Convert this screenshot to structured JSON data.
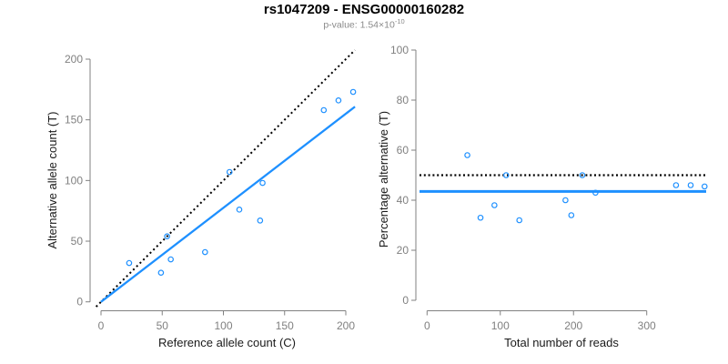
{
  "header": {
    "title": "rs1047209 - ENSG00000160282",
    "subtitle_base": "p-value: 1.54×10",
    "subtitle_exponent": "-10"
  },
  "style": {
    "accent_blue": "#1E90FF",
    "axis_gray": "#808080",
    "subtitle_gray": "#8a8a8a"
  },
  "chart_data": [
    {
      "type": "scatter",
      "xlabel": "Reference allele count (C)",
      "ylabel": "Alternative allele count (T)",
      "xlim": [
        0,
        200
      ],
      "ylim": [
        0,
        200
      ],
      "xticks": [
        0,
        50,
        100,
        150,
        200
      ],
      "yticks": [
        0,
        50,
        100,
        150,
        200
      ],
      "grid": false,
      "legend": false,
      "marker": "open-circle",
      "point_color": "#1E90FF",
      "points": [
        [
          23,
          32
        ],
        [
          49,
          24
        ],
        [
          54,
          54
        ],
        [
          57,
          35
        ],
        [
          85,
          41
        ],
        [
          105,
          107
        ],
        [
          113,
          76
        ],
        [
          130,
          67
        ],
        [
          132,
          98
        ],
        [
          182,
          158
        ],
        [
          194,
          166
        ],
        [
          206,
          173
        ]
      ],
      "lines": [
        {
          "name": "identity-line",
          "style": "dotted",
          "color": "#000000",
          "slope": 1,
          "intercept": 0
        },
        {
          "name": "fit-line",
          "style": "solid",
          "color": "#1E90FF",
          "slope": 0.775,
          "intercept": 0
        }
      ]
    },
    {
      "type": "scatter",
      "xlabel": "Total number of reads",
      "ylabel": "Percentage alternative (T)",
      "xlim": [
        0,
        300
      ],
      "ylim": [
        0,
        100
      ],
      "xticks": [
        0,
        100,
        200,
        300
      ],
      "yticks": [
        0,
        20,
        40,
        60,
        80,
        100
      ],
      "grid": false,
      "legend": false,
      "marker": "open-circle",
      "point_color": "#1E90FF",
      "points": [
        [
          55,
          58
        ],
        [
          73,
          33
        ],
        [
          92,
          38
        ],
        [
          108,
          50
        ],
        [
          126,
          32
        ],
        [
          189,
          40
        ],
        [
          197,
          34
        ],
        [
          212,
          50
        ],
        [
          230,
          43
        ],
        [
          340,
          46
        ],
        [
          360,
          46
        ],
        [
          379,
          45.5
        ]
      ],
      "lines": [
        {
          "name": "expected-50pct-line",
          "style": "dotted",
          "color": "#000000",
          "y": 50
        },
        {
          "name": "mean-percentage-line",
          "style": "solid",
          "color": "#1E90FF",
          "y": 43.5
        }
      ]
    }
  ]
}
